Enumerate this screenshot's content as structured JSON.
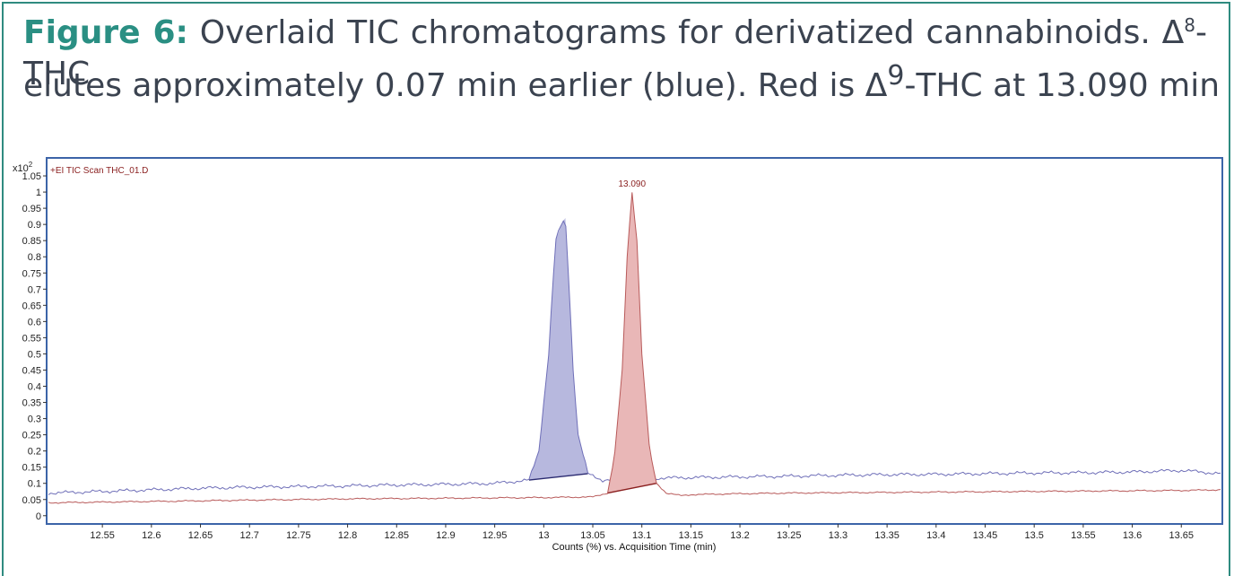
{
  "caption": {
    "label": "Figure 6:",
    "text_a": "Overlaid TIC chromatograms for derivatized cannabinoids. Δ",
    "sup_a": "8",
    "text_b": "-THC",
    "text_c": "elutes approximately 0.07 min earlier (blue). Red is Δ",
    "sup_b": "9",
    "text_d": "-THC at 13.090 min"
  },
  "chart_data": {
    "type": "line",
    "y_multiplier_label": "x10",
    "y_multiplier_exp": "2",
    "series_label": "+EI TIC Scan THC_01.D",
    "xlabel": "Counts (%) vs. Acquisition Time (min)",
    "xlim": [
      12.495,
      13.69
    ],
    "ylim": [
      -0.02,
      1.1
    ],
    "x_ticks": [
      12.55,
      12.6,
      12.65,
      12.7,
      12.75,
      12.8,
      12.85,
      12.9,
      12.95,
      13,
      13.05,
      13.1,
      13.15,
      13.2,
      13.25,
      13.3,
      13.35,
      13.4,
      13.45,
      13.5,
      13.55,
      13.6,
      13.65
    ],
    "y_ticks": [
      0,
      0.05,
      0.1,
      0.15,
      0.2,
      0.25,
      0.3,
      0.35,
      0.4,
      0.45,
      0.5,
      0.55,
      0.6,
      0.65,
      0.7,
      0.75,
      0.8,
      0.85,
      0.9,
      0.95,
      1,
      1.05
    ],
    "peak_label": "13.090",
    "series": [
      {
        "color": "#6f6fb8",
        "fill": "#b7b8de",
        "x": [
          12.495,
          12.55,
          12.6,
          12.65,
          12.7,
          12.75,
          12.8,
          12.85,
          12.9,
          12.95,
          12.985,
          12.995,
          13.005,
          13.012,
          13.018,
          13.022,
          13.026,
          13.03,
          13.035,
          13.045,
          13.06,
          13.1,
          13.15,
          13.2,
          13.25,
          13.3,
          13.35,
          13.4,
          13.45,
          13.5,
          13.55,
          13.6,
          13.65,
          13.69
        ],
        "y": [
          0.07,
          0.075,
          0.08,
          0.085,
          0.088,
          0.09,
          0.092,
          0.095,
          0.097,
          0.1,
          0.11,
          0.2,
          0.5,
          0.85,
          0.9,
          0.92,
          0.7,
          0.45,
          0.25,
          0.13,
          0.11,
          0.115,
          0.118,
          0.12,
          0.122,
          0.125,
          0.127,
          0.128,
          0.13,
          0.132,
          0.133,
          0.135,
          0.14,
          0.13
        ]
      },
      {
        "color": "#b85a5a",
        "fill": "#e9b7b7",
        "x": [
          12.495,
          12.55,
          12.6,
          12.65,
          12.7,
          12.75,
          12.8,
          12.85,
          12.9,
          12.95,
          13,
          13.05,
          13.065,
          13.072,
          13.08,
          13.085,
          13.09,
          13.095,
          13.1,
          13.108,
          13.115,
          13.125,
          13.14,
          13.15,
          13.2,
          13.25,
          13.3,
          13.35,
          13.4,
          13.45,
          13.5,
          13.55,
          13.6,
          13.65,
          13.69
        ],
        "y": [
          0.04,
          0.042,
          0.044,
          0.046,
          0.048,
          0.05,
          0.052,
          0.053,
          0.054,
          0.055,
          0.056,
          0.058,
          0.07,
          0.18,
          0.45,
          0.8,
          1.0,
          0.85,
          0.5,
          0.2,
          0.1,
          0.07,
          0.062,
          0.065,
          0.068,
          0.07,
          0.071,
          0.072,
          0.073,
          0.074,
          0.075,
          0.076,
          0.077,
          0.078,
          0.08
        ]
      }
    ]
  }
}
